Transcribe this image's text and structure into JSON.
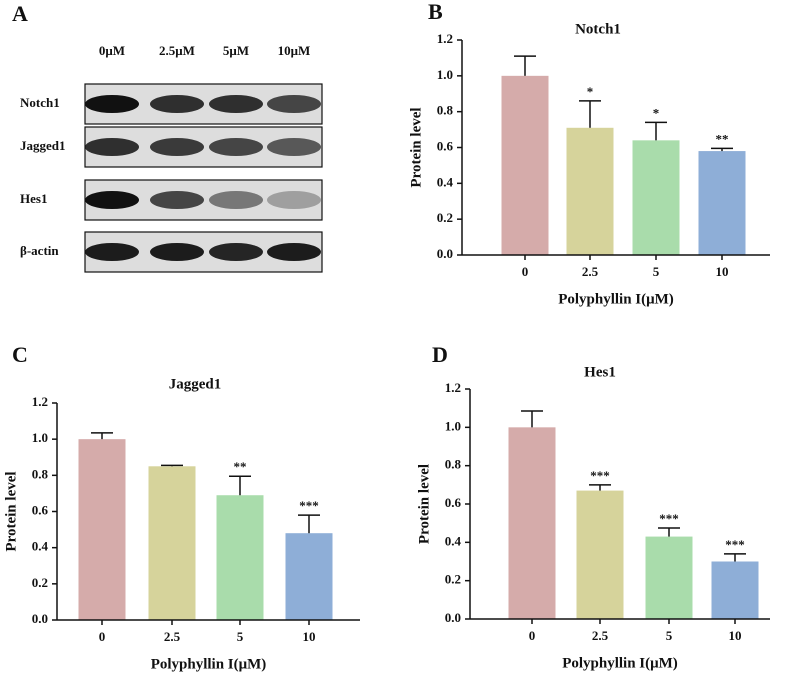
{
  "blot": {
    "label": "A",
    "columns": [
      "0μM",
      "2.5μM",
      "5μM",
      "10μM"
    ],
    "rows": [
      "Notch1",
      "Jagged1",
      "Hes1",
      "β-actin"
    ]
  },
  "chart_data": [
    {
      "type": "bar",
      "label": "B",
      "title": "Notch1",
      "x_label": "Polyphyllin I(μM)",
      "y_label": "Protein level",
      "categories": [
        "0",
        "2.5",
        "5",
        "10"
      ],
      "values": [
        1.0,
        0.71,
        0.64,
        0.58
      ],
      "errors": [
        0.11,
        0.15,
        0.1,
        0.015
      ],
      "annotations": [
        null,
        "*",
        "*",
        "**"
      ],
      "colors": [
        "#d5abaa",
        "#d6d39b",
        "#a9dcab",
        "#8eaed7"
      ],
      "ylim": [
        0,
        1.2
      ],
      "yticks": [
        {
          "value": 0,
          "label": "0.0"
        },
        0.2,
        0.4,
        0.6,
        0.8,
        {
          "value": 1,
          "label": "1.0"
        },
        1.2
      ]
    },
    {
      "type": "bar",
      "label": "C",
      "title": "Jagged1",
      "x_label": "Polyphyllin I(μM)",
      "y_label": "Protein level",
      "categories": [
        "0",
        "2.5",
        "5",
        "10"
      ],
      "values": [
        1.0,
        0.85,
        0.69,
        0.48
      ],
      "errors": [
        0.035,
        0.005,
        0.105,
        0.1
      ],
      "annotations": [
        null,
        null,
        "**",
        "***"
      ],
      "colors": [
        "#d5abaa",
        "#d6d39b",
        "#a9dcab",
        "#8eaed7"
      ],
      "ylim": [
        0,
        1.2
      ],
      "yticks": [
        {
          "value": 0,
          "label": "0.0"
        },
        0.2,
        0.4,
        0.6,
        0.8,
        {
          "value": 1,
          "label": "1.0"
        },
        1.2
      ]
    },
    {
      "type": "bar",
      "label": "D",
      "title": "Hes1",
      "x_label": "Polyphyllin I(μM)",
      "y_label": "Protein level",
      "categories": [
        "0",
        "2.5",
        "5",
        "10"
      ],
      "values": [
        1.0,
        0.67,
        0.43,
        0.3
      ],
      "errors": [
        0.085,
        0.03,
        0.045,
        0.04
      ],
      "annotations": [
        null,
        "***",
        "***",
        "***"
      ],
      "colors": [
        "#d5abaa",
        "#d6d39b",
        "#a9dcab",
        "#8eaed7"
      ],
      "ylim": [
        0,
        1.2
      ],
      "yticks": [
        {
          "value": 0,
          "label": "0.0"
        },
        0.2,
        0.4,
        0.6,
        0.8,
        {
          "value": 1,
          "label": "1.0"
        },
        1.2
      ]
    }
  ]
}
